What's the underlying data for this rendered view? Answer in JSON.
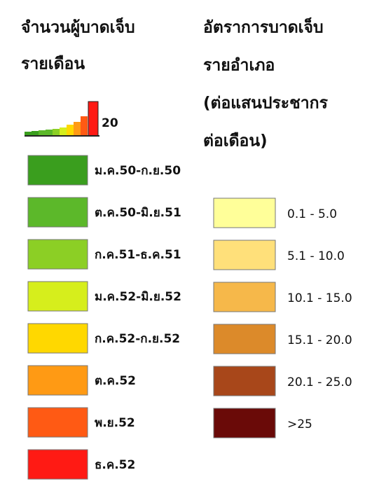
{
  "left_legend": {
    "title": [
      "จำนวนผู้บาดเจ็บ",
      "รายเดือน"
    ],
    "symbol_label": "20",
    "items": [
      {
        "label": "ม.ค.50-ก.ย.50",
        "color": "#3a9e1e"
      },
      {
        "label": "ต.ค.50-มิ.ย.51",
        "color": "#5cb82a"
      },
      {
        "label": "ก.ค.51-ธ.ค.51",
        "color": "#8ccf25"
      },
      {
        "label": "ม.ค.52-มิ.ย.52",
        "color": "#d6ee1c"
      },
      {
        "label": "ก.ค.52-ก.ย.52",
        "color": "#ffd800"
      },
      {
        "label": "ต.ค.52",
        "color": "#ff9a14"
      },
      {
        "label": "พ.ย.52",
        "color": "#ff5a14"
      },
      {
        "label": "ธ.ค.52",
        "color": "#ff1a14"
      }
    ]
  },
  "right_legend": {
    "title": [
      "อัตราการบาดเจ็บ",
      "รายอำเภอ",
      "(ต่อแสนประชากร",
      "ต่อเดือน)"
    ],
    "items": [
      {
        "label": "0.1 - 5.0",
        "color": "#ffff99"
      },
      {
        "label": "5.1 - 10.0",
        "color": "#ffe07a"
      },
      {
        "label": "10.1 - 15.0",
        "color": "#f6b84a"
      },
      {
        "label": "15.1 - 20.0",
        "color": "#dc8a2a"
      },
      {
        "label": "20.1 - 25.0",
        "color": "#a8471a"
      },
      {
        "label": ">25",
        "color": "#6a0a08"
      }
    ]
  }
}
